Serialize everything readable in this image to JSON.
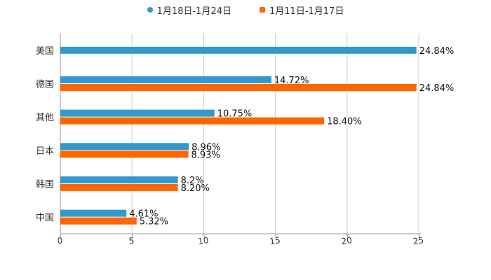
{
  "chart_data": {
    "type": "bar",
    "orientation": "horizontal",
    "categories": [
      "美国",
      "德国",
      "其他",
      "日本",
      "韩国",
      "中国"
    ],
    "series": [
      {
        "name": "1月18日-1月24日",
        "color": "#3399cc",
        "marker": "circle",
        "values": [
          24.84,
          14.72,
          10.75,
          8.96,
          8.2,
          4.61
        ],
        "labels": [
          "24.84%",
          "14.72%",
          "10.75%",
          "8.96%",
          "8.2%",
          "4.61%"
        ]
      },
      {
        "name": "1月11日-1月17日",
        "color": "#ff6600",
        "marker": "rounded-square",
        "values": [
          null,
          24.84,
          18.4,
          8.93,
          8.2,
          5.32
        ],
        "labels": [
          null,
          "24.84%",
          "18.40%",
          "8.93%",
          "8.20%",
          "5.32%"
        ]
      }
    ],
    "xlim": [
      0,
      25
    ],
    "xticks": [
      "0",
      "5",
      "10",
      "15",
      "20",
      "25"
    ],
    "grid": true,
    "legend_position": "top-center",
    "title": "",
    "xlabel": "",
    "ylabel": ""
  }
}
